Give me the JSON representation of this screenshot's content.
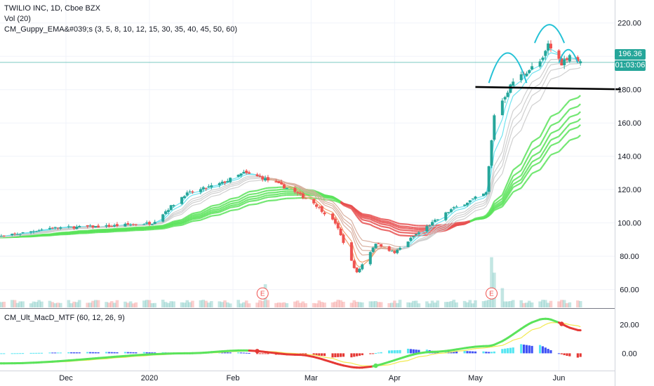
{
  "chart_data": [
    {
      "type": "candlestick",
      "title": "TWILIO INC, 1D, Cboe BZX",
      "indicators": [
        "Vol (20)",
        "CM_Guppy_EMA&#039;s (3, 5, 8, 10, 12, 15, 30, 35, 40, 45, 50, 60)"
      ],
      "y_ticks": [
        "220.00",
        "200.00",
        "180.00",
        "160.00",
        "140.00",
        "120.00",
        "100.00",
        "80.00",
        "60.00"
      ],
      "ylim": [
        55,
        226
      ],
      "x_ticks": [
        "Dec",
        "2020",
        "Feb",
        "Mar",
        "Apr",
        "May",
        "Jun"
      ],
      "last_price": "196.36",
      "countdown": "01:03:06",
      "earnings_markers": [
        "E",
        "E"
      ],
      "annotations": {
        "neckline_level": 181,
        "pattern": "hand-drawn head-and-shoulders arcs above the recent highs"
      },
      "colors": {
        "up": "#26a69a",
        "down": "#ef5350",
        "short_ema_band": "#cfcfcf",
        "long_ema_bull": "#5be35b",
        "long_ema_bear": "#e85050",
        "last_price_line": "#26a69a",
        "annotation_arcs": "#25c2d6",
        "neckline": "#000000"
      },
      "series_points": [
        {
          "date": "2019-11-08",
          "close": 92
        },
        {
          "date": "2019-11-25",
          "close": 97
        },
        {
          "date": "2019-12-16",
          "close": 98
        },
        {
          "date": "2020-01-02",
          "close": 100
        },
        {
          "date": "2020-01-14",
          "close": 117
        },
        {
          "date": "2020-01-28",
          "close": 124
        },
        {
          "date": "2020-02-05",
          "close": 130
        },
        {
          "date": "2020-02-12",
          "close": 127
        },
        {
          "date": "2020-02-21",
          "close": 121
        },
        {
          "date": "2020-03-02",
          "close": 112
        },
        {
          "date": "2020-03-10",
          "close": 100
        },
        {
          "date": "2020-03-16",
          "close": 77
        },
        {
          "date": "2020-03-18",
          "close": 70
        },
        {
          "date": "2020-03-25",
          "close": 88
        },
        {
          "date": "2020-04-01",
          "close": 82
        },
        {
          "date": "2020-04-08",
          "close": 92
        },
        {
          "date": "2020-04-22",
          "close": 108
        },
        {
          "date": "2020-05-05",
          "close": 118
        },
        {
          "date": "2020-05-08",
          "close": 165
        },
        {
          "date": "2020-05-15",
          "close": 185
        },
        {
          "date": "2020-05-26",
          "close": 198
        },
        {
          "date": "2020-05-28",
          "close": 207
        },
        {
          "date": "2020-06-02",
          "close": 196
        },
        {
          "date": "2020-06-05",
          "close": 201
        },
        {
          "date": "2020-06-09",
          "close": 196
        }
      ]
    },
    {
      "type": "line",
      "title": "CM_Ult_MacD_MTF (60, 12, 26, 9)",
      "y_ticks": [
        "20.00",
        "0.00"
      ],
      "ylim": [
        -12,
        29
      ],
      "colors": {
        "macd_up": "#5be35b",
        "macd_down": "#e53935",
        "signal": "#f2e94e",
        "hist_pos_rising": "#54e6f2",
        "hist_pos_falling": "#3f51f5",
        "hist_neg": "#e53935"
      },
      "series_points": [
        {
          "date": "2019-11-08",
          "macd": -7
        },
        {
          "date": "2020-01-15",
          "macd": 0
        },
        {
          "date": "2020-02-05",
          "macd": 2
        },
        {
          "date": "2020-02-25",
          "macd": -1
        },
        {
          "date": "2020-03-19",
          "macd": -10
        },
        {
          "date": "2020-04-15",
          "macd": 1
        },
        {
          "date": "2020-05-05",
          "macd": 5
        },
        {
          "date": "2020-05-27",
          "macd": 24
        },
        {
          "date": "2020-06-09",
          "macd": 16
        }
      ]
    }
  ]
}
